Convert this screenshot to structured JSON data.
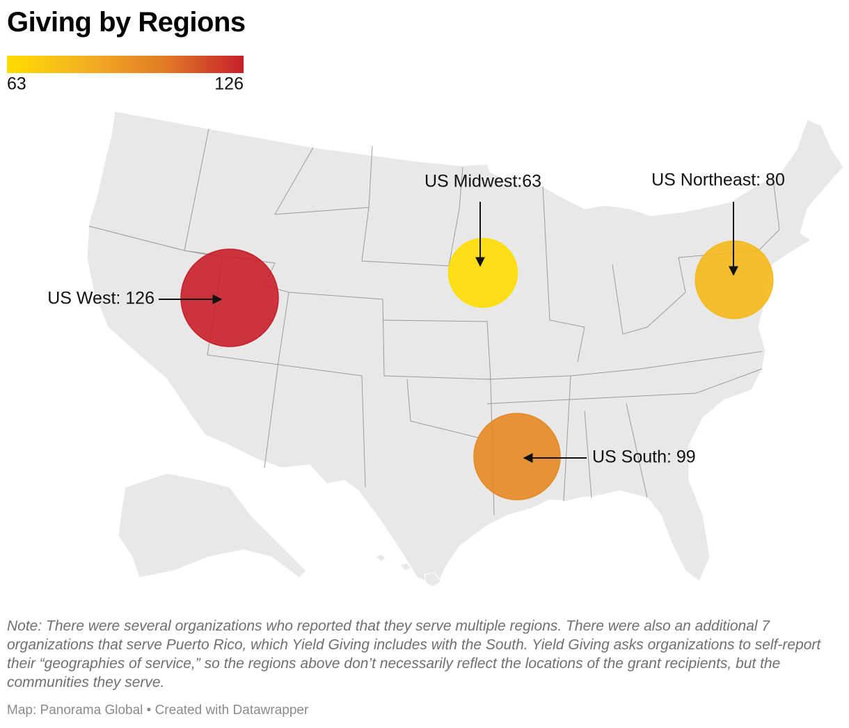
{
  "title": "Giving by Regions",
  "legend": {
    "min": 63,
    "max": 126,
    "colors": [
      "#ffdd00",
      "#f3b021",
      "#e07b26",
      "#c81f2a"
    ]
  },
  "regions": [
    {
      "label": "US West: 126",
      "value": 126
    },
    {
      "label": "US Midwest:63",
      "value": 63
    },
    {
      "label": "US Northeast: 80",
      "value": 80
    },
    {
      "label": "US South: 99",
      "value": 99
    }
  ],
  "note": "Note: There were several organizations who reported that they serve multiple regions. There were also an additional 7 organizations that serve Puerto Rico, which Yield Giving includes with the South. Yield Giving asks organizations to self-report their “geographies of service,” so the regions above don’t necessarily reflect the locations of the grant recipients, but the communities they serve.",
  "credit": "Map: Panorama Global • Created with Datawrapper"
}
